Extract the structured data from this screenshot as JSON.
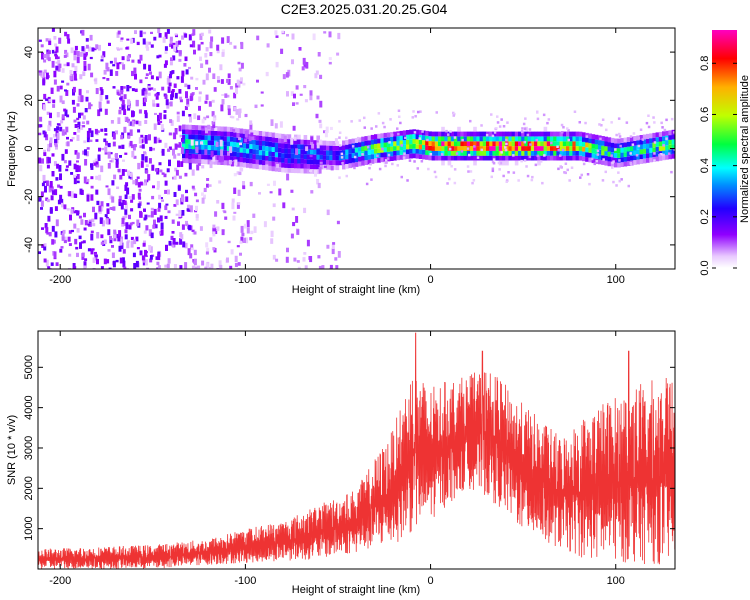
{
  "title": "C2E3.2025.031.20.25.G04",
  "chart_data": [
    {
      "type": "heatmap",
      "xlabel": "Height of straight line (km)",
      "ylabel": "Frequency (Hz)",
      "xlim": [
        -212,
        132
      ],
      "ylim": [
        -50,
        50
      ],
      "x_ticks": [
        -200,
        -100,
        0,
        100
      ],
      "y_ticks": [
        -40,
        -20,
        0,
        20,
        40
      ],
      "colorbar": {
        "label": "Normalized spectral amplitude",
        "range": [
          0,
          0.93
        ],
        "ticks": [
          "0.0",
          "0.2",
          "0.4",
          "0.6",
          "0.8"
        ],
        "tick_values": [
          0.0,
          0.2,
          0.4,
          0.6,
          0.8
        ],
        "colormap": "rainbow (white → violet → blue → cyan → green → yellow → orange → red → magenta)"
      },
      "ridge": {
        "description": "concentrated energy band near 0 Hz",
        "x": [
          -135,
          -110,
          -80,
          -50,
          -30,
          -10,
          0,
          20,
          40,
          60,
          80,
          100,
          132
        ],
        "center_hz": [
          2,
          1,
          -2,
          -3,
          0,
          2,
          1,
          1,
          1,
          1,
          1,
          -2,
          2
        ],
        "peak_amplitude": [
          0.45,
          0.4,
          0.35,
          0.3,
          0.6,
          0.75,
          0.85,
          0.9,
          0.92,
          0.88,
          0.7,
          0.45,
          0.6
        ]
      },
      "noise_region_x": [
        -212,
        -50
      ]
    },
    {
      "type": "line",
      "xlabel": "Height of straight line (km)",
      "ylabel": "SNR (10 * v/v)",
      "xlim": [
        -212,
        132
      ],
      "ylim": [
        0,
        5900
      ],
      "x_ticks": [
        -200,
        -100,
        0,
        100
      ],
      "y_ticks": [
        1000,
        2000,
        3000,
        4000,
        5000
      ],
      "color": "#ee3333",
      "envelope": {
        "x": [
          -212,
          -180,
          -150,
          -120,
          -100,
          -80,
          -60,
          -40,
          -20,
          -10,
          0,
          10,
          20,
          30,
          40,
          50,
          60,
          70,
          80,
          90,
          100,
          110,
          120,
          132
        ],
        "low": [
          0,
          0,
          0,
          100,
          150,
          200,
          250,
          400,
          600,
          900,
          1200,
          1600,
          2000,
          1800,
          1400,
          900,
          700,
          500,
          300,
          200,
          150,
          150,
          100,
          150
        ],
        "high": [
          500,
          550,
          600,
          750,
          1000,
          1200,
          1600,
          2000,
          3500,
          5000,
          4500,
          4700,
          4800,
          5000,
          4600,
          4100,
          3700,
          3300,
          3700,
          4100,
          4300,
          4600,
          4700,
          4800
        ]
      },
      "peaks": [
        {
          "x": -8,
          "y": 5850
        },
        {
          "x": 28,
          "y": 5400
        },
        {
          "x": 107,
          "y": 5400
        }
      ]
    }
  ]
}
